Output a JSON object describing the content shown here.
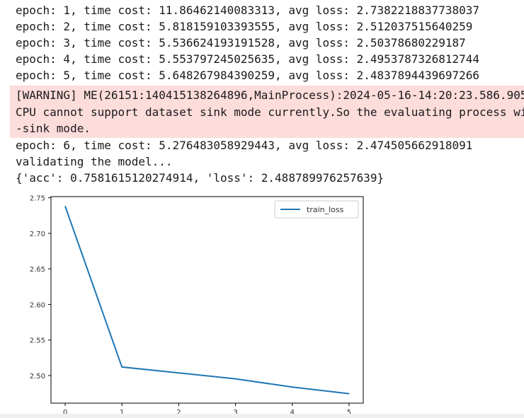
{
  "output": {
    "lines": [
      "epoch: 1, time cost: 11.86462140083313, avg loss: 2.7382218837738037",
      "epoch: 2, time cost: 5.818159103393555, avg loss: 2.512037515640259",
      "epoch: 3, time cost: 5.536624193191528, avg loss: 2.50378680229187",
      "epoch: 4, time cost: 5.553797245025635, avg loss: 2.4953787326812744",
      "epoch: 5, time cost: 5.648267984390259, avg loss: 2.4837894439697266"
    ],
    "warning": [
      "[WARNING] ME(26151:140415138264896,MainProcess):2024-05-16-14:20:23.586.905",
      "CPU cannot support dataset sink mode currently.So the evaluating process wi",
      "-sink mode."
    ],
    "after": [
      "epoch: 6, time cost: 5.276483058929443, avg loss: 2.474505662918091",
      "validating the model...",
      "{'acc': 0.7581615120274914, 'loss': 2.488789976257639}"
    ]
  },
  "colors": {
    "line": "#1f77b4",
    "warning_bg": "#fddcdc"
  },
  "chart_data": {
    "type": "line",
    "x": [
      0,
      1,
      2,
      3,
      4,
      5
    ],
    "series": [
      {
        "name": "train_loss",
        "values": [
          2.7382218837738037,
          2.512037515640259,
          2.50378680229187,
          2.4953787326812744,
          2.4837894439697266,
          2.474505662918091
        ]
      }
    ],
    "yticks": [
      "2.75",
      "2.70",
      "2.65",
      "2.60",
      "2.55",
      "2.50"
    ],
    "xticks": [
      "0",
      "1",
      "2",
      "3",
      "4",
      "5"
    ],
    "ylim": [
      2.4612,
      2.7516
    ],
    "xlim": [
      -0.25,
      5.25
    ],
    "legend": "top-right",
    "grid": false
  }
}
